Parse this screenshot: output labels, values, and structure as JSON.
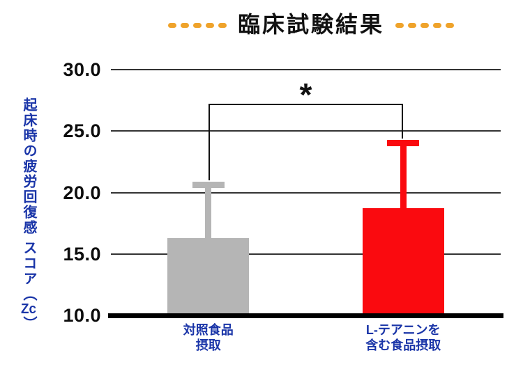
{
  "decoration": {
    "dash_color": "#efa32b",
    "left_count": 5,
    "right_count": 5
  },
  "colors": {
    "title_text": "#111111",
    "axis_label_blue": "#1a35a8",
    "tick_text": "#0d0d0d",
    "gridline": "#333333",
    "axis_line": "#000000",
    "control_bar_gray": "#b5b5b5",
    "theanine_bar_red": "#fa0a0f"
  },
  "chart_data": {
    "type": "bar",
    "title": "臨床試験結果",
    "ylabel": "起床時の疲労回復感 スコア（Zc）",
    "ylabel_parts": {
      "main": "起床時の疲労回復感 スコア",
      "open": "（",
      "unit": "Zc",
      "close": "）"
    },
    "xlabel": "",
    "ylim": [
      10.0,
      30.0
    ],
    "ytick_values": [
      30.0,
      25.0,
      20.0,
      15.0,
      10.0
    ],
    "ytick_labels": [
      "30.0",
      "25.0",
      "20.0",
      "15.0",
      "10.0"
    ],
    "grid": true,
    "legend": "none",
    "categories": [
      [
        "対照食品",
        "摂取"
      ],
      [
        "L-テアニンを",
        "含む食品摂取"
      ]
    ],
    "bars": [
      {
        "name": "control-food",
        "label_lines": [
          "対照食品",
          "摂取"
        ],
        "value": 16.3,
        "error_top": 20.6,
        "color": "#b5b5b5"
      },
      {
        "name": "l-theanine-food",
        "label_lines": [
          "L-テアニンを",
          "含む食品摂取"
        ],
        "value": 18.7,
        "error_top": 24.0,
        "color": "#fa0a0f"
      }
    ],
    "significance": {
      "marker": "*",
      "bracket_top_value": 27.2,
      "pair": [
        0,
        1
      ]
    }
  }
}
